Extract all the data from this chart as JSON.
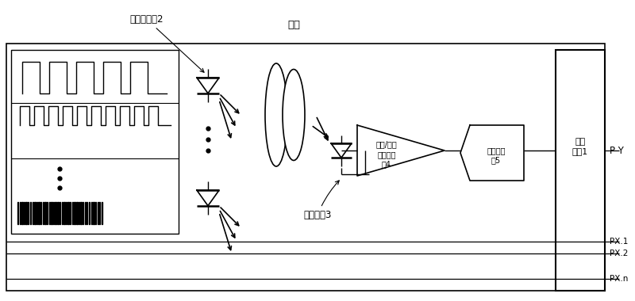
{
  "bg_color": "#ffffff",
  "line_color": "#000000",
  "text_color": "#000000",
  "labels": {
    "led": "发光二极剗2",
    "finger": "手指",
    "photo": "光敏器件3",
    "amp": "电流/电压\n转换放大\n器4",
    "adc": "模数转换\n器5",
    "mcu": "微处\n理器1",
    "py": "P Y",
    "px1": "PX.1",
    "px2": "PX.2",
    "pxn": "PX.n"
  }
}
